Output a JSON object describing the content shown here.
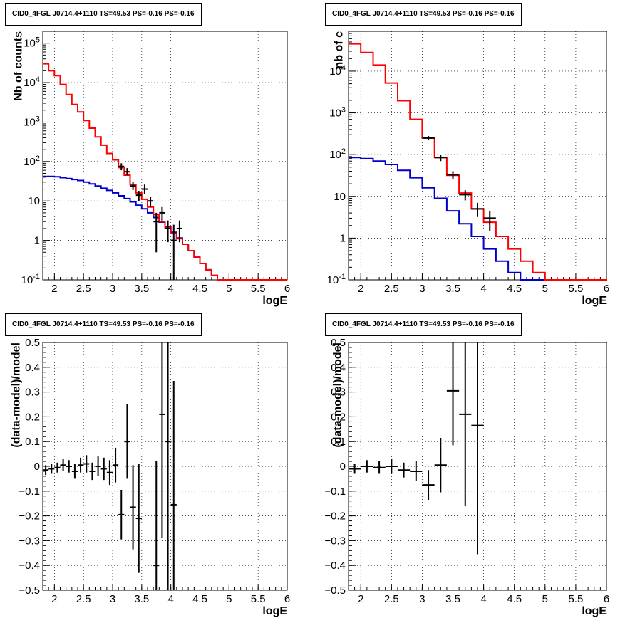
{
  "colors": {
    "model_total": "#ff0000",
    "model_component": "#0000cc",
    "data": "#000000",
    "grid": "#000000"
  },
  "chart_data": [
    {
      "type": "histogram",
      "title": "CID0_4FGL J0714.4+1110 TS=49.53 PS=-0.16 PS=-0.16",
      "xlabel": "logE",
      "ylabel": "Nb of counts",
      "yscale": "log",
      "xlim": [
        1.8,
        6.0
      ],
      "ylim": [
        0.1,
        200000
      ],
      "xticks": [
        "2",
        "2.5",
        "3",
        "3.5",
        "4",
        "4.5",
        "5",
        "5.5",
        "6"
      ],
      "yticks": [
        "10^-1",
        "1",
        "10",
        "10^2",
        "10^3",
        "10^4",
        "10^5"
      ],
      "grid": true,
      "bin_edges": [
        1.8,
        1.9,
        2.0,
        2.1,
        2.2,
        2.3,
        2.4,
        2.5,
        2.6,
        2.7,
        2.8,
        2.9,
        3.0,
        3.1,
        3.2,
        3.3,
        3.4,
        3.5,
        3.6,
        3.7,
        3.8,
        3.9,
        4.0,
        4.1,
        4.2,
        4.3,
        4.4,
        4.5,
        4.6,
        4.7,
        4.8,
        4.9,
        5.0,
        5.1,
        5.2,
        5.3,
        5.4,
        5.5,
        5.6,
        5.7,
        5.8,
        5.9,
        6.0
      ],
      "series": [
        {
          "values": [
            30000,
            20000,
            15000,
            9000,
            5000,
            2800,
            1800,
            1100,
            700,
            420,
            260,
            160,
            110,
            70,
            45,
            26,
            16,
            11,
            7,
            4.5,
            3,
            2.1,
            1.5,
            1.1,
            0.8,
            0.55,
            0.38,
            0.26,
            0.18,
            0.13,
            0.1,
            0.1,
            0.1,
            0.1,
            0.1,
            0.1,
            0.1,
            0.1,
            0.1,
            0.1,
            0.1,
            0.1
          ]
        },
        {
          "values": [
            42,
            42,
            41,
            39,
            37,
            35,
            33,
            30,
            27,
            24,
            21,
            18.5,
            16,
            13.5,
            11.5,
            9.5,
            7.8,
            6.3,
            5,
            3.8,
            2.9,
            2.2,
            1.6,
            1.15,
            0.8,
            0.55,
            0.38,
            0.26,
            0.18,
            0.13,
            0.1,
            0.1,
            0.1,
            0.1,
            0.1,
            0.1,
            0.1,
            0.1,
            0.1,
            0.1,
            0.1,
            0.1
          ]
        }
      ],
      "data_points": [
        {
          "x": 3.15,
          "y": 75,
          "lo": 60,
          "hi": 90
        },
        {
          "x": 3.25,
          "y": 55,
          "lo": 45,
          "hi": 68
        },
        {
          "x": 3.35,
          "y": 24,
          "lo": 19,
          "hi": 30
        },
        {
          "x": 3.45,
          "y": 14,
          "lo": 10,
          "hi": 18
        },
        {
          "x": 3.55,
          "y": 20,
          "lo": 15,
          "hi": 26
        },
        {
          "x": 3.65,
          "y": 10,
          "lo": 7,
          "hi": 13
        },
        {
          "x": 3.75,
          "y": 3,
          "lo": 0.5,
          "hi": 5
        },
        {
          "x": 3.85,
          "y": 5,
          "lo": 3,
          "hi": 7
        },
        {
          "x": 3.95,
          "y": 2,
          "lo": 0.9,
          "hi": 3.2
        },
        {
          "x": 4.05,
          "y": 1,
          "lo": 0.1,
          "hi": 2.5
        },
        {
          "x": 4.15,
          "y": 2,
          "lo": 0.9,
          "hi": 3.2
        }
      ]
    },
    {
      "type": "histogram",
      "title": "CID0_4FGL J0714.4+1110 TS=49.53 PS=-0.16 PS=-0.16",
      "xlabel": "logE",
      "ylabel": "nb of c",
      "yscale": "log",
      "xlim": [
        1.8,
        6.0
      ],
      "ylim": [
        0.1,
        90000
      ],
      "xticks": [
        "2",
        "2.5",
        "3",
        "3.5",
        "4",
        "4.5",
        "5",
        "5.5",
        "6"
      ],
      "yticks": [
        "10^-1",
        "1",
        "10",
        "10^2",
        "10^3",
        "10^4"
      ],
      "grid": true,
      "bin_edges": [
        1.8,
        2.0,
        2.2,
        2.4,
        2.6,
        2.8,
        3.0,
        3.2,
        3.4,
        3.6,
        3.8,
        4.0,
        4.2,
        4.4,
        4.6,
        4.8,
        5.0,
        5.2,
        5.4,
        5.6,
        5.8,
        6.0
      ],
      "series": [
        {
          "values": [
            45000,
            28000,
            14000,
            5200,
            1950,
            700,
            250,
            85,
            32,
            12,
            5,
            2.4,
            1.1,
            0.55,
            0.28,
            0.15,
            0.1,
            0.1,
            0.1,
            0.1,
            0.1
          ]
        },
        {
          "values": [
            85,
            80,
            70,
            58,
            42,
            28,
            16,
            9,
            4.5,
            2.2,
            1.1,
            0.55,
            0.28,
            0.15,
            0.1,
            0.1,
            0.1,
            0.1,
            0.1,
            0.1,
            0.1
          ]
        }
      ],
      "data_points": [
        {
          "x": 3.1,
          "y": 250,
          "lo": 220,
          "hi": 280
        },
        {
          "x": 3.3,
          "y": 85,
          "lo": 70,
          "hi": 100
        },
        {
          "x": 3.5,
          "y": 33,
          "lo": 26,
          "hi": 40
        },
        {
          "x": 3.7,
          "y": 11,
          "lo": 8,
          "hi": 14
        },
        {
          "x": 3.9,
          "y": 5,
          "lo": 3.2,
          "hi": 7
        },
        {
          "x": 4.1,
          "y": 3,
          "lo": 1.5,
          "hi": 4.5
        }
      ]
    },
    {
      "type": "scatter",
      "title": "CID0_4FGL J0714.4+1110 TS=49.53 PS=-0.16 PS=-0.16",
      "xlabel": "logE",
      "ylabel": "(data-model)/model",
      "xlim": [
        1.8,
        6.0
      ],
      "ylim": [
        -0.5,
        0.5
      ],
      "xticks": [
        "2",
        "2.5",
        "3",
        "3.5",
        "4",
        "4.5",
        "5",
        "5.5",
        "6"
      ],
      "yticks": [
        "−0.5",
        "−0.4",
        "−0.3",
        "−0.2",
        "−0.1",
        "0",
        "0.1",
        "0.2",
        "0.3",
        "0.4",
        "0.5"
      ],
      "grid": true,
      "xerr": 0.05,
      "points": [
        {
          "x": 1.85,
          "y": -0.015,
          "err": 0.02
        },
        {
          "x": 1.95,
          "y": -0.01,
          "err": 0.02
        },
        {
          "x": 2.05,
          "y": -0.005,
          "err": 0.02
        },
        {
          "x": 2.15,
          "y": 0.005,
          "err": 0.025
        },
        {
          "x": 2.25,
          "y": 0.0,
          "err": 0.025
        },
        {
          "x": 2.35,
          "y": -0.02,
          "err": 0.03
        },
        {
          "x": 2.45,
          "y": 0.005,
          "err": 0.03
        },
        {
          "x": 2.55,
          "y": 0.01,
          "err": 0.035
        },
        {
          "x": 2.65,
          "y": -0.02,
          "err": 0.035
        },
        {
          "x": 2.75,
          "y": 0.0,
          "err": 0.04
        },
        {
          "x": 2.85,
          "y": -0.01,
          "err": 0.045
        },
        {
          "x": 2.95,
          "y": -0.025,
          "err": 0.05
        },
        {
          "x": 3.05,
          "y": 0.005,
          "err": 0.07
        },
        {
          "x": 3.15,
          "y": -0.195,
          "err": 0.1
        },
        {
          "x": 3.25,
          "y": 0.1,
          "err": 0.15
        },
        {
          "x": 3.35,
          "y": -0.165,
          "err": 0.17
        },
        {
          "x": 3.45,
          "y": -0.21,
          "err": 0.22
        },
        {
          "x": 3.75,
          "y": -0.4,
          "err": 0.42
        },
        {
          "x": 3.85,
          "y": 0.21,
          "err": 0.5
        },
        {
          "x": 3.95,
          "y": 0.1,
          "err": 0.6
        },
        {
          "x": 4.05,
          "y": -0.155,
          "err": 0.5
        }
      ]
    },
    {
      "type": "scatter",
      "title": "CID0_4FGL J0714.4+1110 TS=49.53 PS=-0.16 PS=-0.16",
      "xlabel": "logE",
      "ylabel": "(data-model)/model",
      "xlim": [
        1.8,
        6.0
      ],
      "ylim": [
        -0.5,
        0.5
      ],
      "xticks": [
        "2",
        "2.5",
        "3",
        "3.5",
        "4",
        "4.5",
        "5",
        "5.5",
        "6"
      ],
      "yticks": [
        "−0.5",
        "−0.4",
        "−0.3",
        "−0.2",
        "−0.1",
        "0",
        "0.1",
        "0.2",
        "0.3",
        "0.4",
        "0.5"
      ],
      "grid": true,
      "xerr": 0.1,
      "points": [
        {
          "x": 1.9,
          "y": -0.01,
          "err": 0.02
        },
        {
          "x": 2.1,
          "y": 0.0,
          "err": 0.025
        },
        {
          "x": 2.3,
          "y": -0.005,
          "err": 0.025
        },
        {
          "x": 2.5,
          "y": 0.0,
          "err": 0.03
        },
        {
          "x": 2.7,
          "y": -0.015,
          "err": 0.03
        },
        {
          "x": 2.9,
          "y": -0.02,
          "err": 0.04
        },
        {
          "x": 3.1,
          "y": -0.075,
          "err": 0.06
        },
        {
          "x": 3.3,
          "y": 0.005,
          "err": 0.11
        },
        {
          "x": 3.5,
          "y": 0.305,
          "err": 0.22
        },
        {
          "x": 3.7,
          "y": 0.21,
          "err": 0.37
        },
        {
          "x": 3.9,
          "y": 0.165,
          "err": 0.52
        }
      ]
    }
  ]
}
